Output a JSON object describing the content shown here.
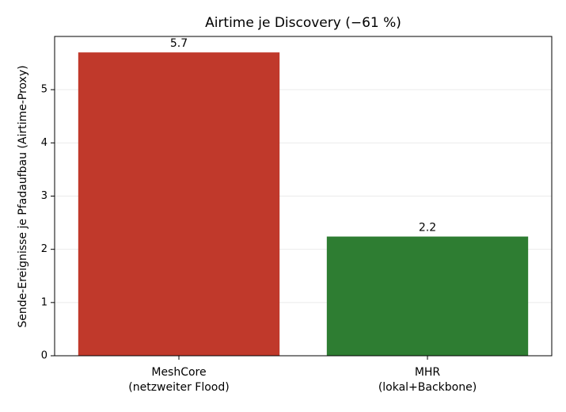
{
  "chart_data": {
    "type": "bar",
    "title": "Airtime je Discovery  (−61 %)",
    "y_label": "Sende-Ereignisse je Pfadaufbau (Airtime-Proxy)",
    "categories": [
      [
        "MeshCore",
        "(netzweiter Flood)"
      ],
      [
        "MHR",
        "(lokal+Backbone)"
      ]
    ],
    "values": [
      5.7,
      2.24
    ],
    "value_labels": [
      "5.7",
      "2.2"
    ],
    "colors": [
      "#c0392b",
      "#2e7d32"
    ],
    "ylim": [
      0,
      6
    ],
    "yticks": [
      0,
      1,
      2,
      3,
      4,
      5
    ],
    "grid": true
  }
}
